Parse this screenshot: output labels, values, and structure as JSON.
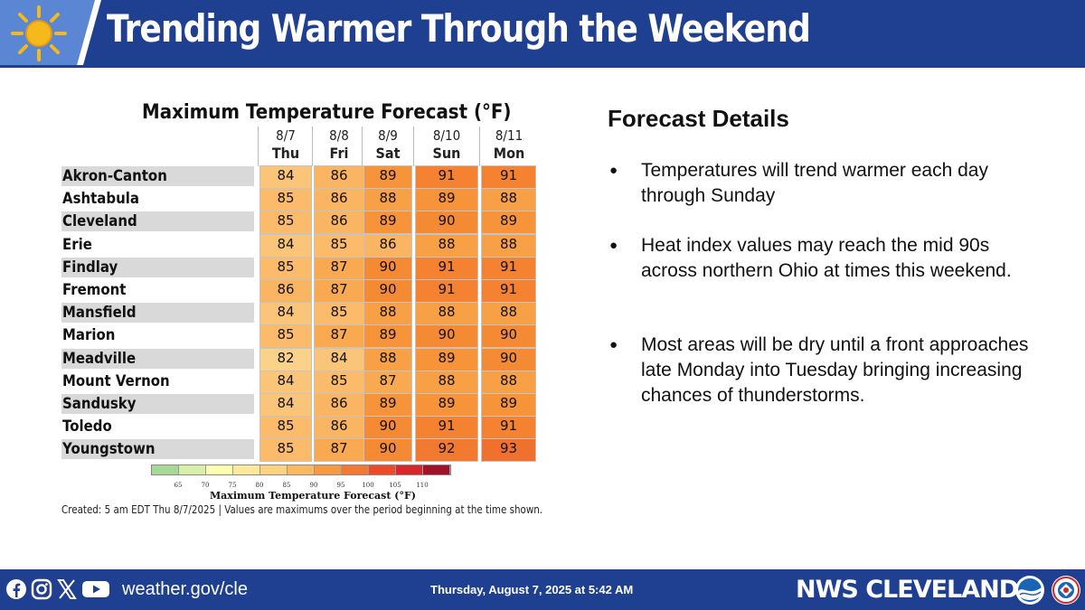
{
  "header": {
    "title": "Trending Warmer Through the Weekend"
  },
  "icons": {
    "header_icon": "sun-icon",
    "social": [
      "facebook-icon",
      "instagram-icon",
      "x-icon",
      "youtube-icon"
    ],
    "logos": [
      "noaa-logo",
      "nws-logo"
    ]
  },
  "colors": {
    "brand_blue": "#1f3f91",
    "t82": "#fbd28a",
    "t84": "#fbc579",
    "t85": "#fbbb6a",
    "t86": "#fab562",
    "t87": "#f9a950",
    "t88": "#f8a045",
    "t89": "#f7943a",
    "t90": "#f58a35",
    "t91": "#f48231",
    "t92": "#f27a30",
    "t93": "#f0712e"
  },
  "chart_data": {
    "type": "table",
    "title": "Maximum Temperature Forecast (°F)",
    "columns": [
      {
        "date": "8/7",
        "day": "Thu"
      },
      {
        "date": "8/8",
        "day": "Fri"
      },
      {
        "date": "8/9",
        "day": "Sat"
      },
      {
        "date": "8/10",
        "day": "Sun"
      },
      {
        "date": "8/11",
        "day": "Mon"
      }
    ],
    "rows": [
      {
        "city": "Akron-Canton",
        "values": [
          84,
          86,
          89,
          91,
          91
        ]
      },
      {
        "city": "Ashtabula",
        "values": [
          85,
          86,
          88,
          89,
          88
        ]
      },
      {
        "city": "Cleveland",
        "values": [
          85,
          86,
          89,
          90,
          89
        ]
      },
      {
        "city": "Erie",
        "values": [
          84,
          85,
          86,
          88,
          88
        ]
      },
      {
        "city": "Findlay",
        "values": [
          85,
          87,
          90,
          91,
          91
        ]
      },
      {
        "city": "Fremont",
        "values": [
          86,
          87,
          90,
          91,
          91
        ]
      },
      {
        "city": "Mansfield",
        "values": [
          84,
          85,
          88,
          88,
          88
        ]
      },
      {
        "city": "Marion",
        "values": [
          85,
          87,
          89,
          90,
          90
        ]
      },
      {
        "city": "Meadville",
        "values": [
          82,
          84,
          88,
          89,
          90
        ]
      },
      {
        "city": "Mount Vernon",
        "values": [
          84,
          85,
          87,
          88,
          88
        ]
      },
      {
        "city": "Sandusky",
        "values": [
          84,
          86,
          89,
          89,
          89
        ]
      },
      {
        "city": "Toledo",
        "values": [
          85,
          86,
          90,
          91,
          91
        ]
      },
      {
        "city": "Youngstown",
        "values": [
          85,
          87,
          90,
          92,
          93
        ]
      }
    ],
    "legend": {
      "caption": "Maximum Temperature Forecast (°F)",
      "ticks": [
        "65",
        "70",
        "75",
        "80",
        "85",
        "90",
        "95",
        "100",
        "105",
        "110"
      ],
      "colors": [
        "#a6d996",
        "#d8efa8",
        "#ffffb0",
        "#ffe89a",
        "#fcd27f",
        "#fbb85e",
        "#f99a41",
        "#f47a33",
        "#ee4a2a",
        "#d9262b",
        "#a3102a"
      ]
    },
    "footnote": "Created: 5 am EDT Thu 8/7/2025  |  Values are maximums over the period beginning at the time shown."
  },
  "details": {
    "title": "Forecast Details",
    "bullets": [
      "Temperatures will trend warmer each day through Sunday",
      "Heat index values may reach the mid 90s across northern Ohio at times this weekend.",
      "Most areas will be dry until a front approaches late Monday into Tuesday bringing increasing chances of thunderstorms."
    ]
  },
  "footer": {
    "url": "weather.gov/cle",
    "date": "Thursday, August 7, 2025 at 5:42 AM",
    "office": "NWS CLEVELAND"
  }
}
